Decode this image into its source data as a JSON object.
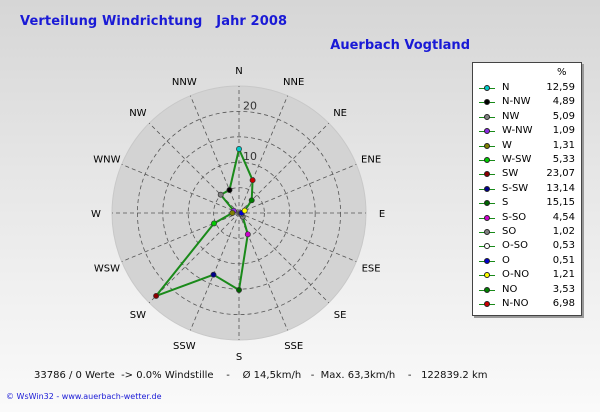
{
  "header": {
    "title": "Verteilung Windrichtung   Jahr 2008",
    "location": "Auerbach Vogtland"
  },
  "legend": {
    "unit_header": "%"
  },
  "chart_data": {
    "type": "radar",
    "title": "Verteilung Windrichtung   Jahr 2008",
    "subtitle": "Auerbach Vogtland",
    "unit": "%",
    "radial_max": 25,
    "ring_ticks": [
      10,
      20
    ],
    "ring_step": 5,
    "grid": true,
    "legend_position": "right",
    "series_color": "#1a8a1a",
    "compass_labels": [
      "N",
      "NNE",
      "NE",
      "ENE",
      "E",
      "ESE",
      "SE",
      "SSE",
      "S",
      "SSW",
      "SW",
      "WSW",
      "W",
      "WNW",
      "NW",
      "NNW"
    ],
    "points": [
      {
        "label": "N",
        "angle_deg": 0,
        "value": 12.59,
        "color": "#00c8c8"
      },
      {
        "label": "N-NW",
        "angle_deg": 337.5,
        "value": 4.89,
        "color": "#000000"
      },
      {
        "label": "NW",
        "angle_deg": 315,
        "value": 5.09,
        "color": "#808080"
      },
      {
        "label": "W-NW",
        "angle_deg": 292.5,
        "value": 1.09,
        "color": "#8a2be2"
      },
      {
        "label": "W",
        "angle_deg": 270,
        "value": 1.31,
        "color": "#808000"
      },
      {
        "label": "W-SW",
        "angle_deg": 247.5,
        "value": 5.33,
        "color": "#00cc00"
      },
      {
        "label": "SW",
        "angle_deg": 225,
        "value": 23.07,
        "color": "#8b0000"
      },
      {
        "label": "S-SW",
        "angle_deg": 202.5,
        "value": 13.14,
        "color": "#00008b"
      },
      {
        "label": "S",
        "angle_deg": 180,
        "value": 15.15,
        "color": "#006400"
      },
      {
        "label": "S-SO",
        "angle_deg": 157.5,
        "value": 4.54,
        "color": "#cc00cc"
      },
      {
        "label": "SO",
        "angle_deg": 135,
        "value": 1.02,
        "color": "#808080"
      },
      {
        "label": "O-SO",
        "angle_deg": 112.5,
        "value": 0.53,
        "color": "#ffffff"
      },
      {
        "label": "O",
        "angle_deg": 90,
        "value": 0.51,
        "color": "#0000cc"
      },
      {
        "label": "O-NO",
        "angle_deg": 67.5,
        "value": 1.21,
        "color": "#ffff00"
      },
      {
        "label": "NO",
        "angle_deg": 45,
        "value": 3.53,
        "color": "#008000"
      },
      {
        "label": "N-NO",
        "angle_deg": 22.5,
        "value": 6.98,
        "color": "#cc0000"
      }
    ]
  },
  "footer": {
    "stats": "33786 / 0 Werte  -> 0.0% Windstille    -    Ø 14,5km/h   -  Max. 63,3km/h    -   122839.2 km",
    "credit": "© WsWin32  -  www.auerbach-wetter.de"
  }
}
